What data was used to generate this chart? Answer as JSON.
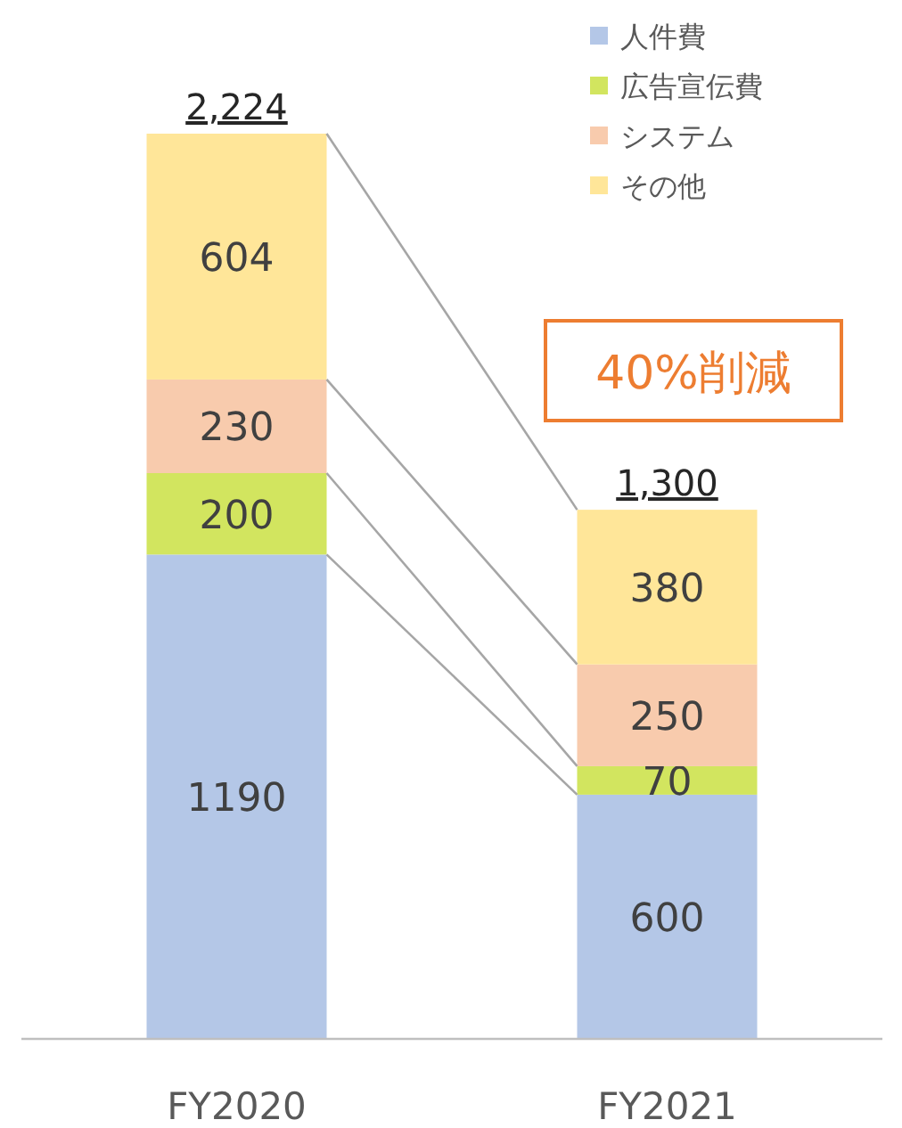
{
  "chart_data": {
    "type": "bar",
    "stacked": true,
    "categories": [
      "FY2020",
      "FY2021"
    ],
    "series": [
      {
        "name": "人件費",
        "color": "#b4c7e7",
        "values": [
          1190,
          600
        ]
      },
      {
        "name": "広告宣伝費",
        "color": "#d2e55f",
        "values": [
          200,
          70
        ]
      },
      {
        "name": "システム",
        "color": "#f8cbad",
        "values": [
          230,
          250
        ]
      },
      {
        "name": "その他",
        "color": "#ffe699",
        "values": [
          604,
          380
        ]
      }
    ],
    "data_labels": true,
    "totals": [
      "2,224",
      "1,300"
    ],
    "legend": "top right",
    "annotations": [
      "40%削減"
    ]
  }
}
